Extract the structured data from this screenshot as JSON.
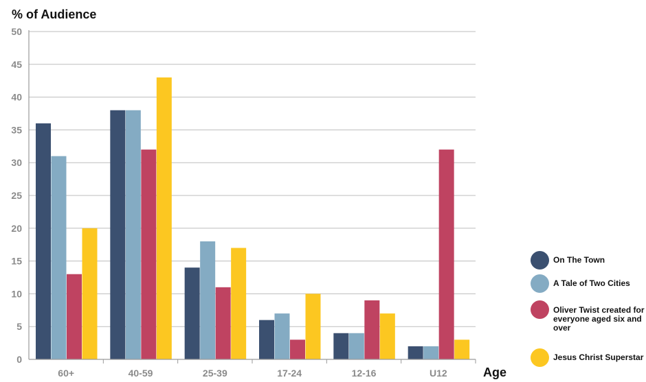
{
  "chart_data": {
    "type": "bar",
    "ylabel": "% of Audience",
    "xlabel": "Age",
    "ylim": [
      0,
      50
    ],
    "yticks": [
      0,
      5,
      10,
      15,
      20,
      25,
      30,
      35,
      40,
      45,
      50
    ],
    "categories": [
      "60+",
      "40-59",
      "25-39",
      "17-24",
      "12-16",
      "U12"
    ],
    "series": [
      {
        "name": "On The Town",
        "color": "#3b5070",
        "values": [
          36,
          38,
          14,
          6,
          4,
          2
        ]
      },
      {
        "name": "A Tale of Two Cities",
        "color": "#84abc3",
        "values": [
          31,
          38,
          18,
          7,
          4,
          2
        ]
      },
      {
        "name": "Oliver Twist created for everyone aged six and over",
        "color": "#bf4361",
        "values": [
          13,
          32,
          11,
          3,
          9,
          32
        ]
      },
      {
        "name": "Jesus Christ Superstar",
        "color": "#fcc721",
        "values": [
          20,
          43,
          17,
          10,
          7,
          3
        ]
      }
    ],
    "grid": true,
    "legend_position": "bottom-right"
  }
}
